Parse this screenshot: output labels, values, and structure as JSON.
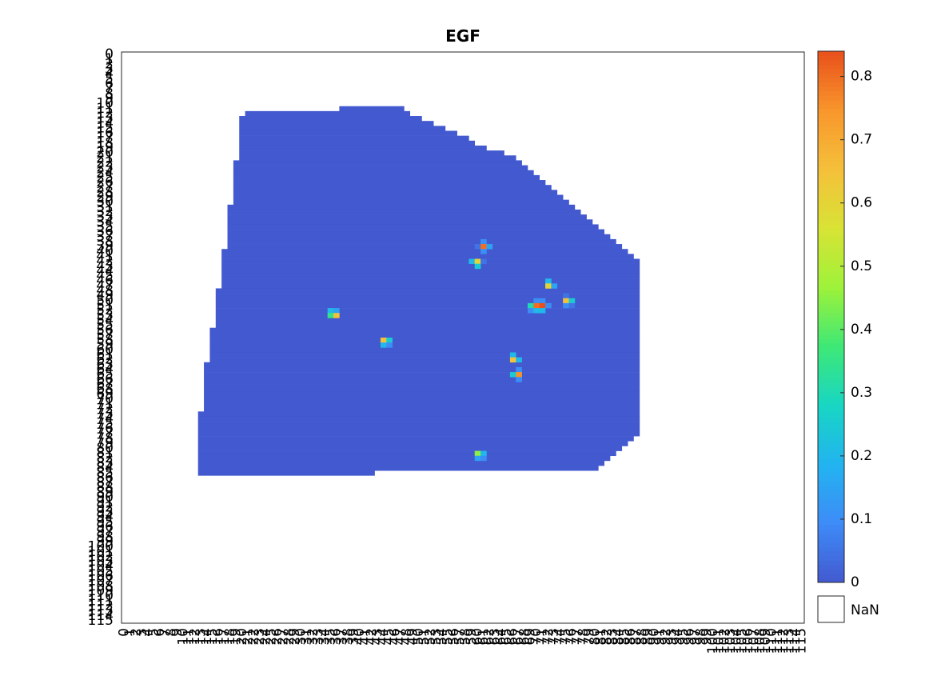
{
  "chart_data": {
    "type": "heatmap",
    "title": "EGF",
    "rows": 116,
    "cols": 116,
    "x_ticks": [
      "0",
      "1",
      "2",
      "3",
      "4",
      "5",
      "6",
      "7",
      "8",
      "9",
      "10",
      "11",
      "12",
      "13",
      "14",
      "15",
      "16",
      "17",
      "18",
      "19",
      "20",
      "21",
      "22",
      "23",
      "24",
      "25",
      "26",
      "27",
      "28",
      "29",
      "30",
      "31",
      "32",
      "33",
      "34",
      "35",
      "36",
      "37",
      "38",
      "39",
      "40",
      "41",
      "42",
      "43",
      "44",
      "45",
      "46",
      "47",
      "48",
      "49",
      "50",
      "51",
      "52",
      "53",
      "54",
      "55",
      "56",
      "57",
      "58",
      "59",
      "60",
      "61",
      "62",
      "63",
      "64",
      "65",
      "66",
      "67",
      "68",
      "69",
      "70",
      "71",
      "72",
      "73",
      "74",
      "75",
      "76",
      "77",
      "78",
      "79",
      "80",
      "81",
      "82",
      "83",
      "84",
      "85",
      "86",
      "87",
      "88",
      "89",
      "90",
      "91",
      "92",
      "93",
      "94",
      "95",
      "96",
      "97",
      "98",
      "99",
      "100",
      "101",
      "102",
      "103",
      "104",
      "105",
      "106",
      "107",
      "108",
      "109",
      "110",
      "111",
      "112",
      "113",
      "114",
      "115"
    ],
    "y_ticks": [
      "0",
      "1",
      "2",
      "3",
      "4",
      "5",
      "6",
      "7",
      "8",
      "9",
      "10",
      "11",
      "12",
      "13",
      "14",
      "15",
      "16",
      "17",
      "18",
      "19",
      "20",
      "21",
      "22",
      "23",
      "24",
      "25",
      "26",
      "27",
      "28",
      "29",
      "30",
      "31",
      "32",
      "33",
      "34",
      "35",
      "36",
      "37",
      "38",
      "39",
      "40",
      "41",
      "42",
      "43",
      "44",
      "45",
      "46",
      "47",
      "48",
      "49",
      "50",
      "51",
      "52",
      "53",
      "54",
      "55",
      "56",
      "57",
      "58",
      "59",
      "60",
      "61",
      "62",
      "63",
      "64",
      "65",
      "66",
      "67",
      "68",
      "69",
      "70",
      "71",
      "72",
      "73",
      "74",
      "75",
      "76",
      "77",
      "78",
      "79",
      "80",
      "81",
      "82",
      "83",
      "84",
      "85",
      "86",
      "87",
      "88",
      "89",
      "90",
      "91",
      "92",
      "93",
      "94",
      "95",
      "96",
      "97",
      "98",
      "99",
      "100",
      "101",
      "102",
      "103",
      "104",
      "105",
      "106",
      "107",
      "108",
      "109",
      "110",
      "111",
      "112",
      "113",
      "114",
      "115"
    ],
    "colorbar": {
      "min": 0,
      "max": 0.84,
      "ticks": [
        "0",
        "0.1",
        "0.2",
        "0.3",
        "0.4",
        "0.5",
        "0.6",
        "0.7",
        "0.8"
      ],
      "nan_label": "NaN",
      "colormap": [
        "#4359cf",
        "#3e8bf7",
        "#22b3f0",
        "#18d6c4",
        "#3ee876",
        "#9ef23a",
        "#d8e335",
        "#f5c03a",
        "#f8962c",
        "#e9501b"
      ]
    },
    "region_rows": [
      {
        "y": 11,
        "x0": 37,
        "x1": 47
      },
      {
        "y": 12,
        "x0": 21,
        "x1": 48
      },
      {
        "y": 13,
        "x0": 20,
        "x1": 50
      },
      {
        "y": 14,
        "x0": 20,
        "x1": 52
      },
      {
        "y": 15,
        "x0": 20,
        "x1": 54
      },
      {
        "y": 16,
        "x0": 20,
        "x1": 56
      },
      {
        "y": 17,
        "x0": 20,
        "x1": 58
      },
      {
        "y": 18,
        "x0": 20,
        "x1": 59
      },
      {
        "y": 19,
        "x0": 20,
        "x1": 61
      },
      {
        "y": 20,
        "x0": 20,
        "x1": 64
      },
      {
        "y": 21,
        "x0": 20,
        "x1": 66
      },
      {
        "y": 22,
        "x0": 19,
        "x1": 67
      },
      {
        "y": 23,
        "x0": 19,
        "x1": 68
      },
      {
        "y": 24,
        "x0": 19,
        "x1": 69
      },
      {
        "y": 25,
        "x0": 19,
        "x1": 70
      },
      {
        "y": 26,
        "x0": 19,
        "x1": 71
      },
      {
        "y": 27,
        "x0": 19,
        "x1": 72
      },
      {
        "y": 28,
        "x0": 19,
        "x1": 73
      },
      {
        "y": 29,
        "x0": 19,
        "x1": 74
      },
      {
        "y": 30,
        "x0": 19,
        "x1": 75
      },
      {
        "y": 31,
        "x0": 18,
        "x1": 76
      },
      {
        "y": 32,
        "x0": 18,
        "x1": 77
      },
      {
        "y": 33,
        "x0": 18,
        "x1": 78
      },
      {
        "y": 34,
        "x0": 18,
        "x1": 79
      },
      {
        "y": 35,
        "x0": 18,
        "x1": 80
      },
      {
        "y": 36,
        "x0": 18,
        "x1": 81
      },
      {
        "y": 37,
        "x0": 18,
        "x1": 82
      },
      {
        "y": 38,
        "x0": 18,
        "x1": 83
      },
      {
        "y": 39,
        "x0": 18,
        "x1": 84
      },
      {
        "y": 40,
        "x0": 17,
        "x1": 85
      },
      {
        "y": 41,
        "x0": 17,
        "x1": 86
      },
      {
        "y": 42,
        "x0": 17,
        "x1": 87
      },
      {
        "y": 43,
        "x0": 17,
        "x1": 87
      },
      {
        "y": 44,
        "x0": 17,
        "x1": 87
      },
      {
        "y": 45,
        "x0": 17,
        "x1": 87
      },
      {
        "y": 46,
        "x0": 17,
        "x1": 87
      },
      {
        "y": 47,
        "x0": 17,
        "x1": 87
      },
      {
        "y": 48,
        "x0": 16,
        "x1": 87
      },
      {
        "y": 49,
        "x0": 16,
        "x1": 87
      },
      {
        "y": 50,
        "x0": 16,
        "x1": 87
      },
      {
        "y": 51,
        "x0": 16,
        "x1": 87
      },
      {
        "y": 52,
        "x0": 16,
        "x1": 87
      },
      {
        "y": 53,
        "x0": 16,
        "x1": 87
      },
      {
        "y": 54,
        "x0": 16,
        "x1": 87
      },
      {
        "y": 55,
        "x0": 16,
        "x1": 87
      },
      {
        "y": 56,
        "x0": 15,
        "x1": 87
      },
      {
        "y": 57,
        "x0": 15,
        "x1": 87
      },
      {
        "y": 58,
        "x0": 15,
        "x1": 87
      },
      {
        "y": 59,
        "x0": 15,
        "x1": 87
      },
      {
        "y": 60,
        "x0": 15,
        "x1": 87
      },
      {
        "y": 61,
        "x0": 15,
        "x1": 87
      },
      {
        "y": 62,
        "x0": 15,
        "x1": 87
      },
      {
        "y": 63,
        "x0": 14,
        "x1": 87
      },
      {
        "y": 64,
        "x0": 14,
        "x1": 87
      },
      {
        "y": 65,
        "x0": 14,
        "x1": 87
      },
      {
        "y": 66,
        "x0": 14,
        "x1": 87
      },
      {
        "y": 67,
        "x0": 14,
        "x1": 87
      },
      {
        "y": 68,
        "x0": 14,
        "x1": 87
      },
      {
        "y": 69,
        "x0": 14,
        "x1": 87
      },
      {
        "y": 70,
        "x0": 14,
        "x1": 87
      },
      {
        "y": 71,
        "x0": 14,
        "x1": 87
      },
      {
        "y": 72,
        "x0": 14,
        "x1": 87
      },
      {
        "y": 73,
        "x0": 13,
        "x1": 87
      },
      {
        "y": 74,
        "x0": 13,
        "x1": 87
      },
      {
        "y": 75,
        "x0": 13,
        "x1": 87
      },
      {
        "y": 76,
        "x0": 13,
        "x1": 87
      },
      {
        "y": 77,
        "x0": 13,
        "x1": 87
      },
      {
        "y": 78,
        "x0": 13,
        "x1": 86
      },
      {
        "y": 79,
        "x0": 13,
        "x1": 85
      },
      {
        "y": 80,
        "x0": 13,
        "x1": 84
      },
      {
        "y": 81,
        "x0": 13,
        "x1": 83
      },
      {
        "y": 82,
        "x0": 13,
        "x1": 82
      },
      {
        "y": 83,
        "x0": 13,
        "x1": 81
      },
      {
        "y": 84,
        "x0": 13,
        "x1": 80
      },
      {
        "y": 85,
        "x0": 13,
        "x1": 42
      }
    ],
    "hot_cells": [
      {
        "x": 61,
        "y": 38,
        "v": 0.1
      },
      {
        "x": 60,
        "y": 39,
        "v": 0.05
      },
      {
        "x": 61,
        "y": 39,
        "v": 0.8
      },
      {
        "x": 62,
        "y": 39,
        "v": 0.15
      },
      {
        "x": 61,
        "y": 40,
        "v": 0.1
      },
      {
        "x": 59,
        "y": 42,
        "v": 0.2
      },
      {
        "x": 60,
        "y": 42,
        "v": 0.6
      },
      {
        "x": 61,
        "y": 42,
        "v": 0.05
      },
      {
        "x": 60,
        "y": 43,
        "v": 0.25
      },
      {
        "x": 72,
        "y": 46,
        "v": 0.2
      },
      {
        "x": 72,
        "y": 47,
        "v": 0.6
      },
      {
        "x": 73,
        "y": 47,
        "v": 0.15
      },
      {
        "x": 75,
        "y": 49,
        "v": 0.05
      },
      {
        "x": 75,
        "y": 50,
        "v": 0.65
      },
      {
        "x": 76,
        "y": 50,
        "v": 0.25
      },
      {
        "x": 75,
        "y": 51,
        "v": 0.1
      },
      {
        "x": 76,
        "y": 51,
        "v": 0.05
      },
      {
        "x": 70,
        "y": 50,
        "v": 0.1
      },
      {
        "x": 71,
        "y": 50,
        "v": 0.1
      },
      {
        "x": 69,
        "y": 51,
        "v": 0.3
      },
      {
        "x": 70,
        "y": 51,
        "v": 0.8
      },
      {
        "x": 71,
        "y": 51,
        "v": 0.84
      },
      {
        "x": 72,
        "y": 51,
        "v": 0.1
      },
      {
        "x": 69,
        "y": 52,
        "v": 0.1
      },
      {
        "x": 70,
        "y": 52,
        "v": 0.2
      },
      {
        "x": 71,
        "y": 52,
        "v": 0.2
      },
      {
        "x": 35,
        "y": 52,
        "v": 0.2
      },
      {
        "x": 36,
        "y": 52,
        "v": 0.15
      },
      {
        "x": 35,
        "y": 53,
        "v": 0.35
      },
      {
        "x": 36,
        "y": 53,
        "v": 0.65
      },
      {
        "x": 44,
        "y": 58,
        "v": 0.65
      },
      {
        "x": 45,
        "y": 58,
        "v": 0.25
      },
      {
        "x": 44,
        "y": 59,
        "v": 0.2
      },
      {
        "x": 45,
        "y": 59,
        "v": 0.1
      },
      {
        "x": 66,
        "y": 61,
        "v": 0.2
      },
      {
        "x": 66,
        "y": 62,
        "v": 0.65
      },
      {
        "x": 67,
        "y": 62,
        "v": 0.2
      },
      {
        "x": 67,
        "y": 64,
        "v": 0.1
      },
      {
        "x": 66,
        "y": 65,
        "v": 0.25
      },
      {
        "x": 67,
        "y": 65,
        "v": 0.75
      },
      {
        "x": 67,
        "y": 66,
        "v": 0.1
      },
      {
        "x": 60,
        "y": 81,
        "v": 0.45
      },
      {
        "x": 61,
        "y": 81,
        "v": 0.2
      },
      {
        "x": 60,
        "y": 82,
        "v": 0.15
      },
      {
        "x": 61,
        "y": 82,
        "v": 0.1
      }
    ]
  }
}
